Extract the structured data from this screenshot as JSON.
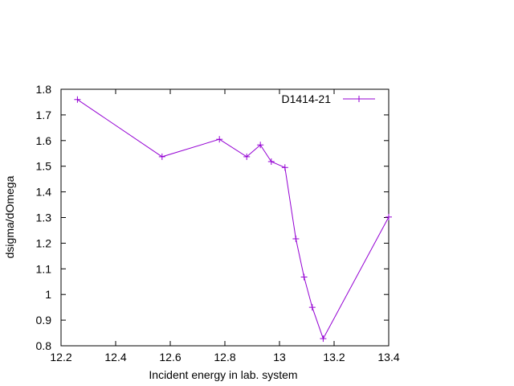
{
  "chart_data": {
    "type": "line",
    "title": "",
    "xlabel": "Incident energy in lab. system",
    "ylabel": "dsigma/dOmega",
    "xlim": [
      12.2,
      13.4
    ],
    "ylim": [
      0.8,
      1.8
    ],
    "xticks": [
      "12.2",
      "12.4",
      "12.6",
      "12.8",
      "13",
      "13.2",
      "13.4"
    ],
    "yticks": [
      "0.8",
      "0.9",
      "1",
      "1.1",
      "1.2",
      "1.3",
      "1.4",
      "1.5",
      "1.6",
      "1.7",
      "1.8"
    ],
    "grid": false,
    "legend": "top-right",
    "series": [
      {
        "name": "D1414-21",
        "color": "#9400d3",
        "marker": "plus",
        "x": [
          12.26,
          12.57,
          12.78,
          12.88,
          12.93,
          12.97,
          13.02,
          13.06,
          13.09,
          13.12,
          13.16,
          13.4
        ],
        "y": [
          1.76,
          1.537,
          1.605,
          1.537,
          1.583,
          1.518,
          1.495,
          1.217,
          1.068,
          0.95,
          0.828,
          1.302
        ]
      }
    ]
  }
}
